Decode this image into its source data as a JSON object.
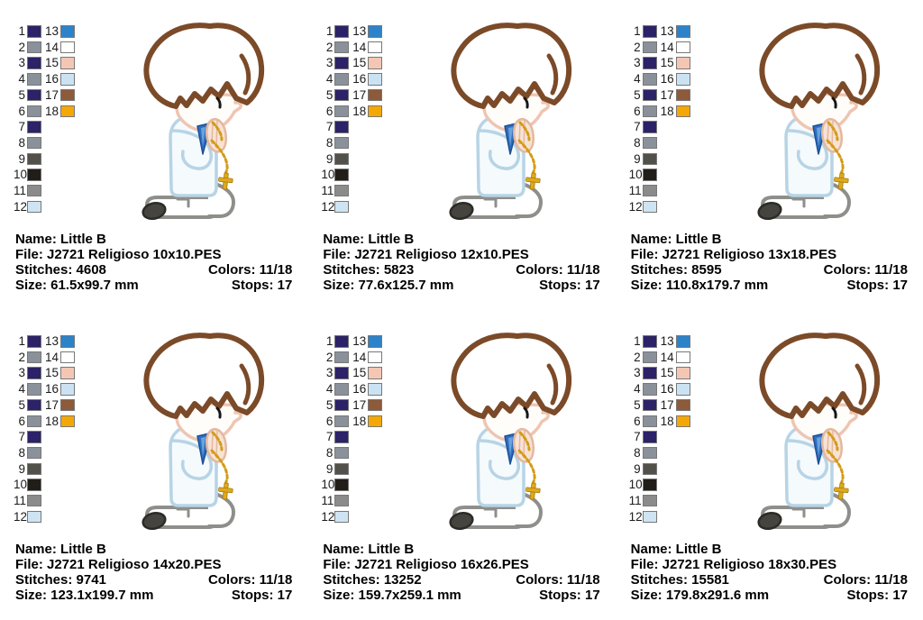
{
  "page": {
    "background": "#ffffff"
  },
  "palette": {
    "left": [
      {
        "num": "1",
        "color": "#2b2268"
      },
      {
        "num": "2",
        "color": "#8b919a"
      },
      {
        "num": "3",
        "color": "#2b2268"
      },
      {
        "num": "4",
        "color": "#8b919a"
      },
      {
        "num": "5",
        "color": "#2b2268"
      },
      {
        "num": "6",
        "color": "#8b919a"
      },
      {
        "num": "7",
        "color": "#2b2268"
      },
      {
        "num": "8",
        "color": "#8b919a"
      },
      {
        "num": "9",
        "color": "#52504a"
      },
      {
        "num": "10",
        "color": "#211d18"
      },
      {
        "num": "11",
        "color": "#8b8b8b"
      },
      {
        "num": "12",
        "color": "#cfe4f2"
      }
    ],
    "right": [
      {
        "num": "13",
        "color": "#2d83c9"
      },
      {
        "num": "14",
        "color": "#ffffff"
      },
      {
        "num": "15",
        "color": "#f4c7b5"
      },
      {
        "num": "16",
        "color": "#cbe2f3"
      },
      {
        "num": "17",
        "color": "#8d5a3a"
      },
      {
        "num": "18",
        "color": "#f4a805"
      }
    ]
  },
  "figure": {
    "label": "kneeling praying boy with rosary (applique embroidery preview)",
    "colors": {
      "hair": "#7b4a28",
      "skin": "#eec5b2",
      "skin_fill": "#fffdf9",
      "shirt": "#b7d4e5",
      "shirt_fill": "#f5fafd",
      "leg": "#8e8e8b",
      "shoe": "#45443f",
      "shoe_dk": "#2c2b27",
      "eye": "#161616",
      "accent": "#2f6fc0",
      "accent_dk": "#1d4f96",
      "accent_hl": "#6aa4dd",
      "hand": "#e4b8a1",
      "hand_fill": "#f7e3d5",
      "gold": "#d49b16",
      "gold_cross": "#dfa91c",
      "gold_dk": "#a87b10"
    }
  },
  "panels": [
    {
      "name_line": "Name: Little B",
      "file_line": "File: J2721 Religioso 10x10.PES",
      "stitches_line": "Stitches: 4608",
      "colors_line": "Colors: 11/18",
      "size_line": "Size: 61.5x99.7 mm",
      "stops_line": "Stops: 17"
    },
    {
      "name_line": "Name: Little B",
      "file_line": "File: J2721 Religioso 12x10.PES",
      "stitches_line": "Stitches: 5823",
      "colors_line": "Colors: 11/18",
      "size_line": "Size: 77.6x125.7 mm",
      "stops_line": "Stops: 17"
    },
    {
      "name_line": "Name: Little B",
      "file_line": "File: J2721 Religioso 13x18.PES",
      "stitches_line": "Stitches: 8595",
      "colors_line": "Colors: 11/18",
      "size_line": "Size: 110.8x179.7 mm",
      "stops_line": "Stops: 17"
    },
    {
      "name_line": "Name: Little B",
      "file_line": "File: J2721 Religioso 14x20.PES",
      "stitches_line": "Stitches: 9741",
      "colors_line": "Colors: 11/18",
      "size_line": "Size: 123.1x199.7 mm",
      "stops_line": "Stops: 17"
    },
    {
      "name_line": "Name: Little B",
      "file_line": "File: J2721 Religioso 16x26.PES",
      "stitches_line": "Stitches: 13252",
      "colors_line": "Colors: 11/18",
      "size_line": "Size: 159.7x259.1 mm",
      "stops_line": "Stops: 17"
    },
    {
      "name_line": "Name: Little B",
      "file_line": "File: J2721 Religioso 18x30.PES",
      "stitches_line": "Stitches: 15581",
      "colors_line": "Colors: 11/18",
      "size_line": "Size: 179.8x291.6 mm",
      "stops_line": "Stops: 17"
    }
  ]
}
